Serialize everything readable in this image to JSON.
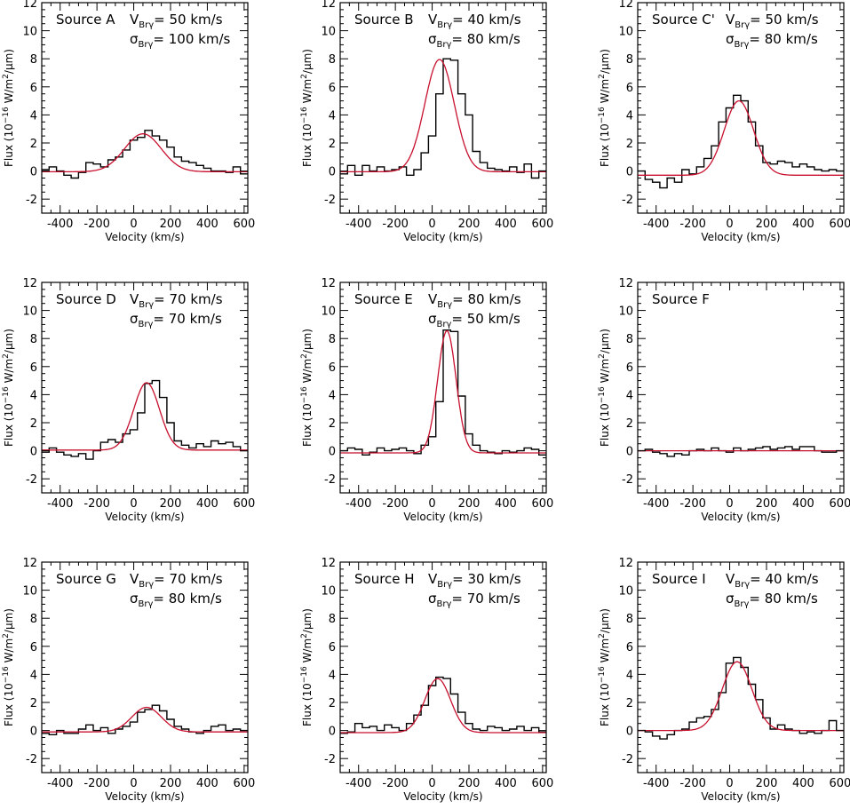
{
  "figure": {
    "xlabel": "Velocity (km/s)",
    "ylabel_prefix": "Flux (10",
    "ylabel_exponent": "−16",
    "ylabel_units_a": " W/m",
    "ylabel_units_sq": "2",
    "ylabel_units_b": "/μm)",
    "v_symbol": "V",
    "sigma_symbol": "σ",
    "line_subscript": "Brγ",
    "histogram_color": "#000000",
    "fit_color": "#c8102e"
  },
  "chart_data": [
    {
      "type": "line",
      "title": "Source A",
      "v_text": "= 50 km/s",
      "sigma_text": "= 100 km/s",
      "xlim": [
        -500,
        620
      ],
      "ylim": [
        -3,
        12
      ],
      "xticks": [
        "-400",
        "-200",
        "0",
        "200",
        "400",
        "600"
      ],
      "yticks": [
        "-2",
        "0",
        "2",
        "4",
        "6",
        "8",
        "10",
        "12"
      ],
      "fit": {
        "amplitude": 2.7,
        "center": 50,
        "sigma": 100,
        "baseline": -0.05
      },
      "histogram": [
        0.1,
        0.3,
        0.0,
        -0.3,
        -0.5,
        -0.1,
        0.6,
        0.5,
        0.3,
        0.8,
        1.0,
        1.5,
        2.2,
        2.4,
        2.9,
        2.5,
        2.2,
        1.7,
        1.0,
        0.7,
        0.6,
        0.4,
        0.2,
        0.0,
        0.0,
        -0.1,
        0.3,
        -0.2
      ]
    },
    {
      "type": "line",
      "title": "Source B",
      "v_text": "= 40 km/s",
      "sigma_text": "= 80 km/s",
      "xlim": [
        -500,
        620
      ],
      "ylim": [
        -3,
        12
      ],
      "xticks": [
        "-400",
        "-200",
        "0",
        "200",
        "400",
        "600"
      ],
      "yticks": [
        "-2",
        "0",
        "2",
        "4",
        "6",
        "8",
        "10",
        "12"
      ],
      "fit": {
        "amplitude": 8.0,
        "center": 40,
        "sigma": 80,
        "baseline": -0.05
      },
      "histogram": [
        -0.2,
        0.4,
        -0.3,
        0.4,
        0.0,
        0.3,
        0.0,
        0.1,
        0.3,
        -0.3,
        0.1,
        1.3,
        2.5,
        5.5,
        8.0,
        7.9,
        5.5,
        4.0,
        1.4,
        0.6,
        0.2,
        0.1,
        0.0,
        0.3,
        -0.1,
        0.5,
        -0.5,
        0.0
      ]
    },
    {
      "type": "line",
      "title": "Source C'",
      "v_text": "= 50 km/s",
      "sigma_text": "= 80 km/s",
      "xlim": [
        -500,
        620
      ],
      "ylim": [
        -3,
        12
      ],
      "xticks": [
        "-400",
        "-200",
        "0",
        "200",
        "400",
        "600"
      ],
      "yticks": [
        "-2",
        "0",
        "2",
        "4",
        "6",
        "8",
        "10",
        "12"
      ],
      "fit": {
        "amplitude": 5.3,
        "center": 50,
        "sigma": 80,
        "baseline": -0.3
      },
      "histogram": [
        0.0,
        -0.6,
        -0.8,
        -1.2,
        -0.5,
        -0.8,
        0.1,
        -0.2,
        0.3,
        0.9,
        1.8,
        3.5,
        4.5,
        5.4,
        5.0,
        3.5,
        1.8,
        0.6,
        0.5,
        0.7,
        0.6,
        0.3,
        0.5,
        0.3,
        0.1,
        0.0,
        0.1,
        0.0
      ]
    },
    {
      "type": "line",
      "title": "Source D",
      "v_text": "= 70 km/s",
      "sigma_text": "= 70 km/s",
      "xlim": [
        -500,
        620
      ],
      "ylim": [
        -3,
        12
      ],
      "xticks": [
        "-400",
        "-200",
        "0",
        "200",
        "400",
        "600"
      ],
      "yticks": [
        "-2",
        "0",
        "2",
        "4",
        "6",
        "8",
        "10",
        "12"
      ],
      "fit": {
        "amplitude": 4.8,
        "center": 70,
        "sigma": 70,
        "baseline": 0.05
      },
      "histogram": [
        -0.1,
        0.2,
        -0.1,
        -0.3,
        -0.4,
        -0.2,
        -0.6,
        0.0,
        0.6,
        0.8,
        0.6,
        1.2,
        1.5,
        2.7,
        4.8,
        5.0,
        3.8,
        2.0,
        0.7,
        0.4,
        0.2,
        0.5,
        0.3,
        0.7,
        0.5,
        0.6,
        0.3,
        0.0
      ]
    },
    {
      "type": "line",
      "title": "Source E",
      "v_text": "= 80 km/s",
      "sigma_text": "= 50 km/s",
      "xlim": [
        -500,
        620
      ],
      "ylim": [
        -3,
        12
      ],
      "xticks": [
        "-400",
        "-200",
        "0",
        "200",
        "400",
        "600"
      ],
      "yticks": [
        "-2",
        "0",
        "2",
        "4",
        "6",
        "8",
        "10",
        "12"
      ],
      "fit": {
        "amplitude": 8.7,
        "center": 80,
        "sigma": 50,
        "baseline": -0.15
      },
      "histogram": [
        0.0,
        0.2,
        0.1,
        -0.3,
        -0.1,
        0.2,
        0.0,
        0.1,
        0.2,
        0.0,
        -0.2,
        0.4,
        1.0,
        3.5,
        8.6,
        8.5,
        3.9,
        1.2,
        0.4,
        0.0,
        -0.1,
        -0.2,
        0.0,
        -0.1,
        0.0,
        0.2,
        0.1,
        -0.3
      ]
    },
    {
      "type": "line",
      "title": "Source F",
      "v_text": "",
      "sigma_text": "",
      "xlim": [
        -500,
        620
      ],
      "ylim": [
        -3,
        12
      ],
      "xticks": [
        "-400",
        "-200",
        "0",
        "200",
        "400",
        "600"
      ],
      "yticks": [
        "-2",
        "0",
        "2",
        "4",
        "6",
        "8",
        "10",
        "12"
      ],
      "fit": {
        "amplitude": 0.0,
        "center": 0,
        "sigma": 100,
        "baseline": 0.0
      },
      "histogram": [
        0.0,
        0.1,
        -0.1,
        -0.2,
        -0.4,
        -0.2,
        -0.3,
        0.0,
        0.1,
        0.0,
        0.2,
        0.0,
        -0.1,
        0.2,
        0.0,
        0.1,
        0.2,
        0.3,
        0.1,
        0.2,
        0.3,
        0.1,
        0.3,
        0.3,
        0.0,
        -0.1,
        -0.1,
        0.0
      ]
    },
    {
      "type": "line",
      "title": "Source G",
      "v_text": "= 70 km/s",
      "sigma_text": "= 80 km/s",
      "xlim": [
        -500,
        620
      ],
      "ylim": [
        -3,
        12
      ],
      "xticks": [
        "-400",
        "-200",
        "0",
        "200",
        "400",
        "600"
      ],
      "yticks": [
        "-2",
        "0",
        "2",
        "4",
        "6",
        "8",
        "10",
        "12"
      ],
      "fit": {
        "amplitude": 1.75,
        "center": 70,
        "sigma": 80,
        "baseline": -0.1
      },
      "histogram": [
        -0.2,
        -0.3,
        0.0,
        -0.2,
        -0.2,
        0.1,
        0.4,
        0.0,
        0.2,
        -0.2,
        0.1,
        0.3,
        0.6,
        1.3,
        1.5,
        1.8,
        1.4,
        0.8,
        0.3,
        0.1,
        -0.1,
        -0.2,
        0.0,
        0.3,
        0.4,
        0.0,
        0.1,
        0.0
      ]
    },
    {
      "type": "line",
      "title": "Source H",
      "v_text": "= 30 km/s",
      "sigma_text": "= 70 km/s",
      "xlim": [
        -500,
        620
      ],
      "ylim": [
        -3,
        12
      ],
      "xticks": [
        "-400",
        "-200",
        "0",
        "200",
        "400",
        "600"
      ],
      "yticks": [
        "-2",
        "0",
        "2",
        "4",
        "6",
        "8",
        "10",
        "12"
      ],
      "fit": {
        "amplitude": 3.85,
        "center": 30,
        "sigma": 70,
        "baseline": -0.15
      },
      "histogram": [
        -0.2,
        -0.1,
        0.5,
        0.2,
        0.3,
        0.0,
        0.4,
        0.2,
        0.0,
        0.5,
        1.1,
        1.8,
        3.2,
        3.8,
        3.7,
        2.6,
        1.3,
        0.5,
        0.1,
        0.0,
        0.3,
        0.2,
        0.0,
        0.1,
        0.3,
        0.0,
        0.2,
        -0.1
      ]
    },
    {
      "type": "line",
      "title": "Source I",
      "v_text": "= 40 km/s",
      "sigma_text": "= 80 km/s",
      "xlim": [
        -500,
        620
      ],
      "ylim": [
        -3,
        12
      ],
      "xticks": [
        "-400",
        "-200",
        "0",
        "200",
        "400",
        "600"
      ],
      "yticks": [
        "-2",
        "0",
        "2",
        "4",
        "6",
        "8",
        "10",
        "12"
      ],
      "fit": {
        "amplitude": 4.9,
        "center": 40,
        "sigma": 80,
        "baseline": 0.0
      },
      "histogram": [
        0.0,
        -0.1,
        -0.4,
        -0.6,
        -0.3,
        0.0,
        0.1,
        0.6,
        0.9,
        1.0,
        1.5,
        2.7,
        4.8,
        5.2,
        4.5,
        3.3,
        2.2,
        0.9,
        0.1,
        0.4,
        0.1,
        0.0,
        -0.2,
        -0.1,
        -0.2,
        0.0,
        0.7,
        0.0
      ]
    }
  ]
}
